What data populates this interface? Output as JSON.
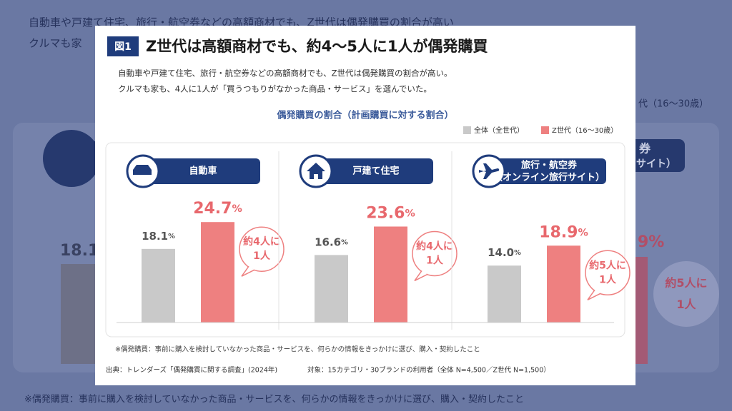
{
  "background": {
    "line1": "自動車や戸建て住宅、旅行・航空券などの高額商材でも、Z世代は偶発購買の割合が高い",
    "line2": "クルマも家",
    "legend_tail": "代（16〜30歳）",
    "pill_line1": "券",
    "pill_line2": "サイト）",
    "left_value": "18.1",
    "right_value": "9%",
    "callout": "約5人に1人",
    "footnote": "※偶発購買：事前に購入を検討していなかった商品・サービスを、何らかの情報をきっかけに選び、購入・契約したこと"
  },
  "figure": {
    "label": "図1",
    "title": "Z世代は高額商材でも、約4〜5人に1人が偶発購買",
    "description": [
      "自動車や戸建て住宅、旅行・航空券などの高額商材でも、Z世代は偶発購買の割合が高い。",
      "クルマも家も、4人に1人が「買うつもりがなかった商品・サービス」を選んでいた。"
    ],
    "note": "※偶発購買：事前に購入を検討していなかった商品・サービスを、何らかの情報をきっかけに選び、購入・契約したこと",
    "source": "出典：トレンダーズ「偶発購買に関する調査」(2024年)",
    "target": "対象：15カテゴリ・30ブランドの利用者（全体 N=4,500／Z世代 N=1,500）"
  },
  "chart_data": {
    "type": "bar",
    "title": "偶発購買の割合（計画購買に対する割合）",
    "categories": [
      "自動車",
      "戸建て住宅",
      "旅行・航空券（オンライン旅行サイト）"
    ],
    "series": [
      {
        "name": "全体（全世代）",
        "color": "#c9c9c9",
        "values": [
          18.1,
          16.6,
          14.0
        ],
        "value_labels": [
          "18.1%",
          "16.6%",
          "14.0%"
        ]
      },
      {
        "name": "Z世代（16〜30歳）",
        "color": "#ee8080",
        "values": [
          24.7,
          23.6,
          18.9
        ],
        "value_labels": [
          "24.7%",
          "23.6%",
          "18.9%"
        ]
      }
    ],
    "callouts": [
      "約4人に1人",
      "約4人に1人",
      "約5人に1人"
    ],
    "ylim": [
      0,
      30
    ]
  }
}
